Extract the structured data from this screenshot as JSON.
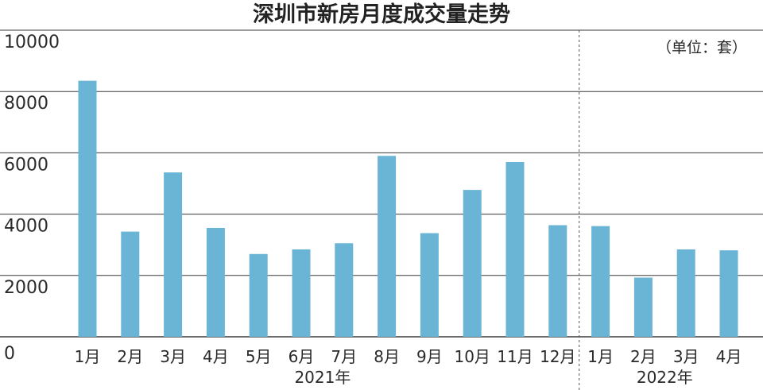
{
  "chart_data": {
    "type": "bar",
    "title": "深圳市新房月度成交量走势",
    "unit_label": "（单位：套）",
    "ylim": [
      0,
      10000
    ],
    "yticks": [
      "0",
      "2000",
      "4000",
      "6000",
      "8000",
      "10000"
    ],
    "categories": [
      "1月",
      "2月",
      "3月",
      "4月",
      "5月",
      "6月",
      "7月",
      "8月",
      "9月",
      "10月",
      "11月",
      "12月",
      "1月",
      "2月",
      "3月",
      "4月"
    ],
    "values": [
      8350,
      3430,
      5360,
      3550,
      2700,
      2850,
      3050,
      5900,
      3380,
      4790,
      5700,
      3640,
      3610,
      1930,
      2850,
      2820
    ],
    "groups": [
      {
        "label": "2021年",
        "count": 12
      },
      {
        "label": "2022年",
        "count": 4
      }
    ],
    "grid": true,
    "colors": {
      "bar": "#6ab4d6",
      "grid": "#3a3a3a",
      "divider": "#555555",
      "text": "#2a2a2a"
    }
  }
}
